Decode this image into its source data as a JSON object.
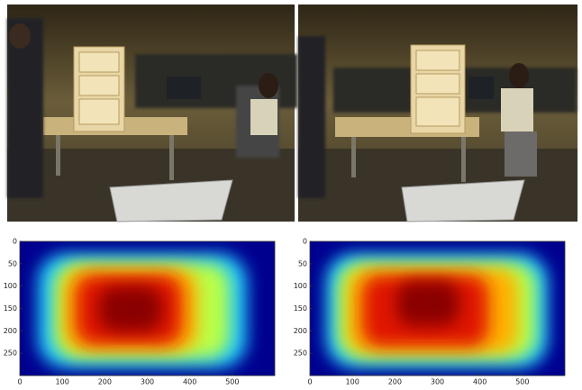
{
  "chart_data": [
    {
      "type": "heatmap",
      "xlim": [
        0,
        600
      ],
      "ylim": [
        300,
        0
      ],
      "xticks": [
        0,
        100,
        200,
        300,
        400,
        500
      ],
      "yticks": [
        0,
        50,
        100,
        150,
        200,
        250
      ]
    },
    {
      "type": "heatmap",
      "xlim": [
        0,
        600
      ],
      "ylim": [
        300,
        0
      ],
      "xticks": [
        0,
        100,
        200,
        300,
        400,
        500
      ],
      "yticks": [
        0,
        50,
        100,
        150,
        200,
        250
      ]
    }
  ]
}
